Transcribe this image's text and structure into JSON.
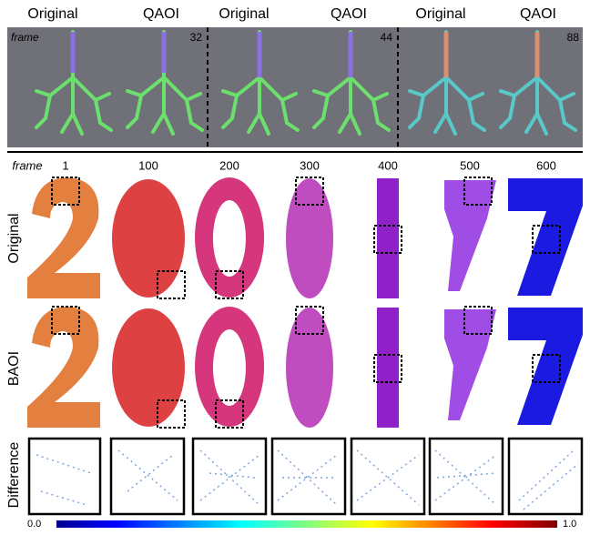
{
  "header": {
    "columns": [
      "Original",
      "QAOI",
      "Original",
      "QAOI",
      "Original",
      "QAOI"
    ]
  },
  "top_panel": {
    "frame_label": "frame",
    "frames": [
      "32",
      "44",
      "88"
    ]
  },
  "bottom_panel": {
    "frame_label": "frame",
    "frames": [
      "1",
      "100",
      "200",
      "300",
      "400",
      "500",
      "600"
    ],
    "row_labels": [
      "Original",
      "BAOI",
      "Difference"
    ]
  },
  "colorbar": {
    "min_label": "0.0",
    "max_label": "1.0"
  }
}
